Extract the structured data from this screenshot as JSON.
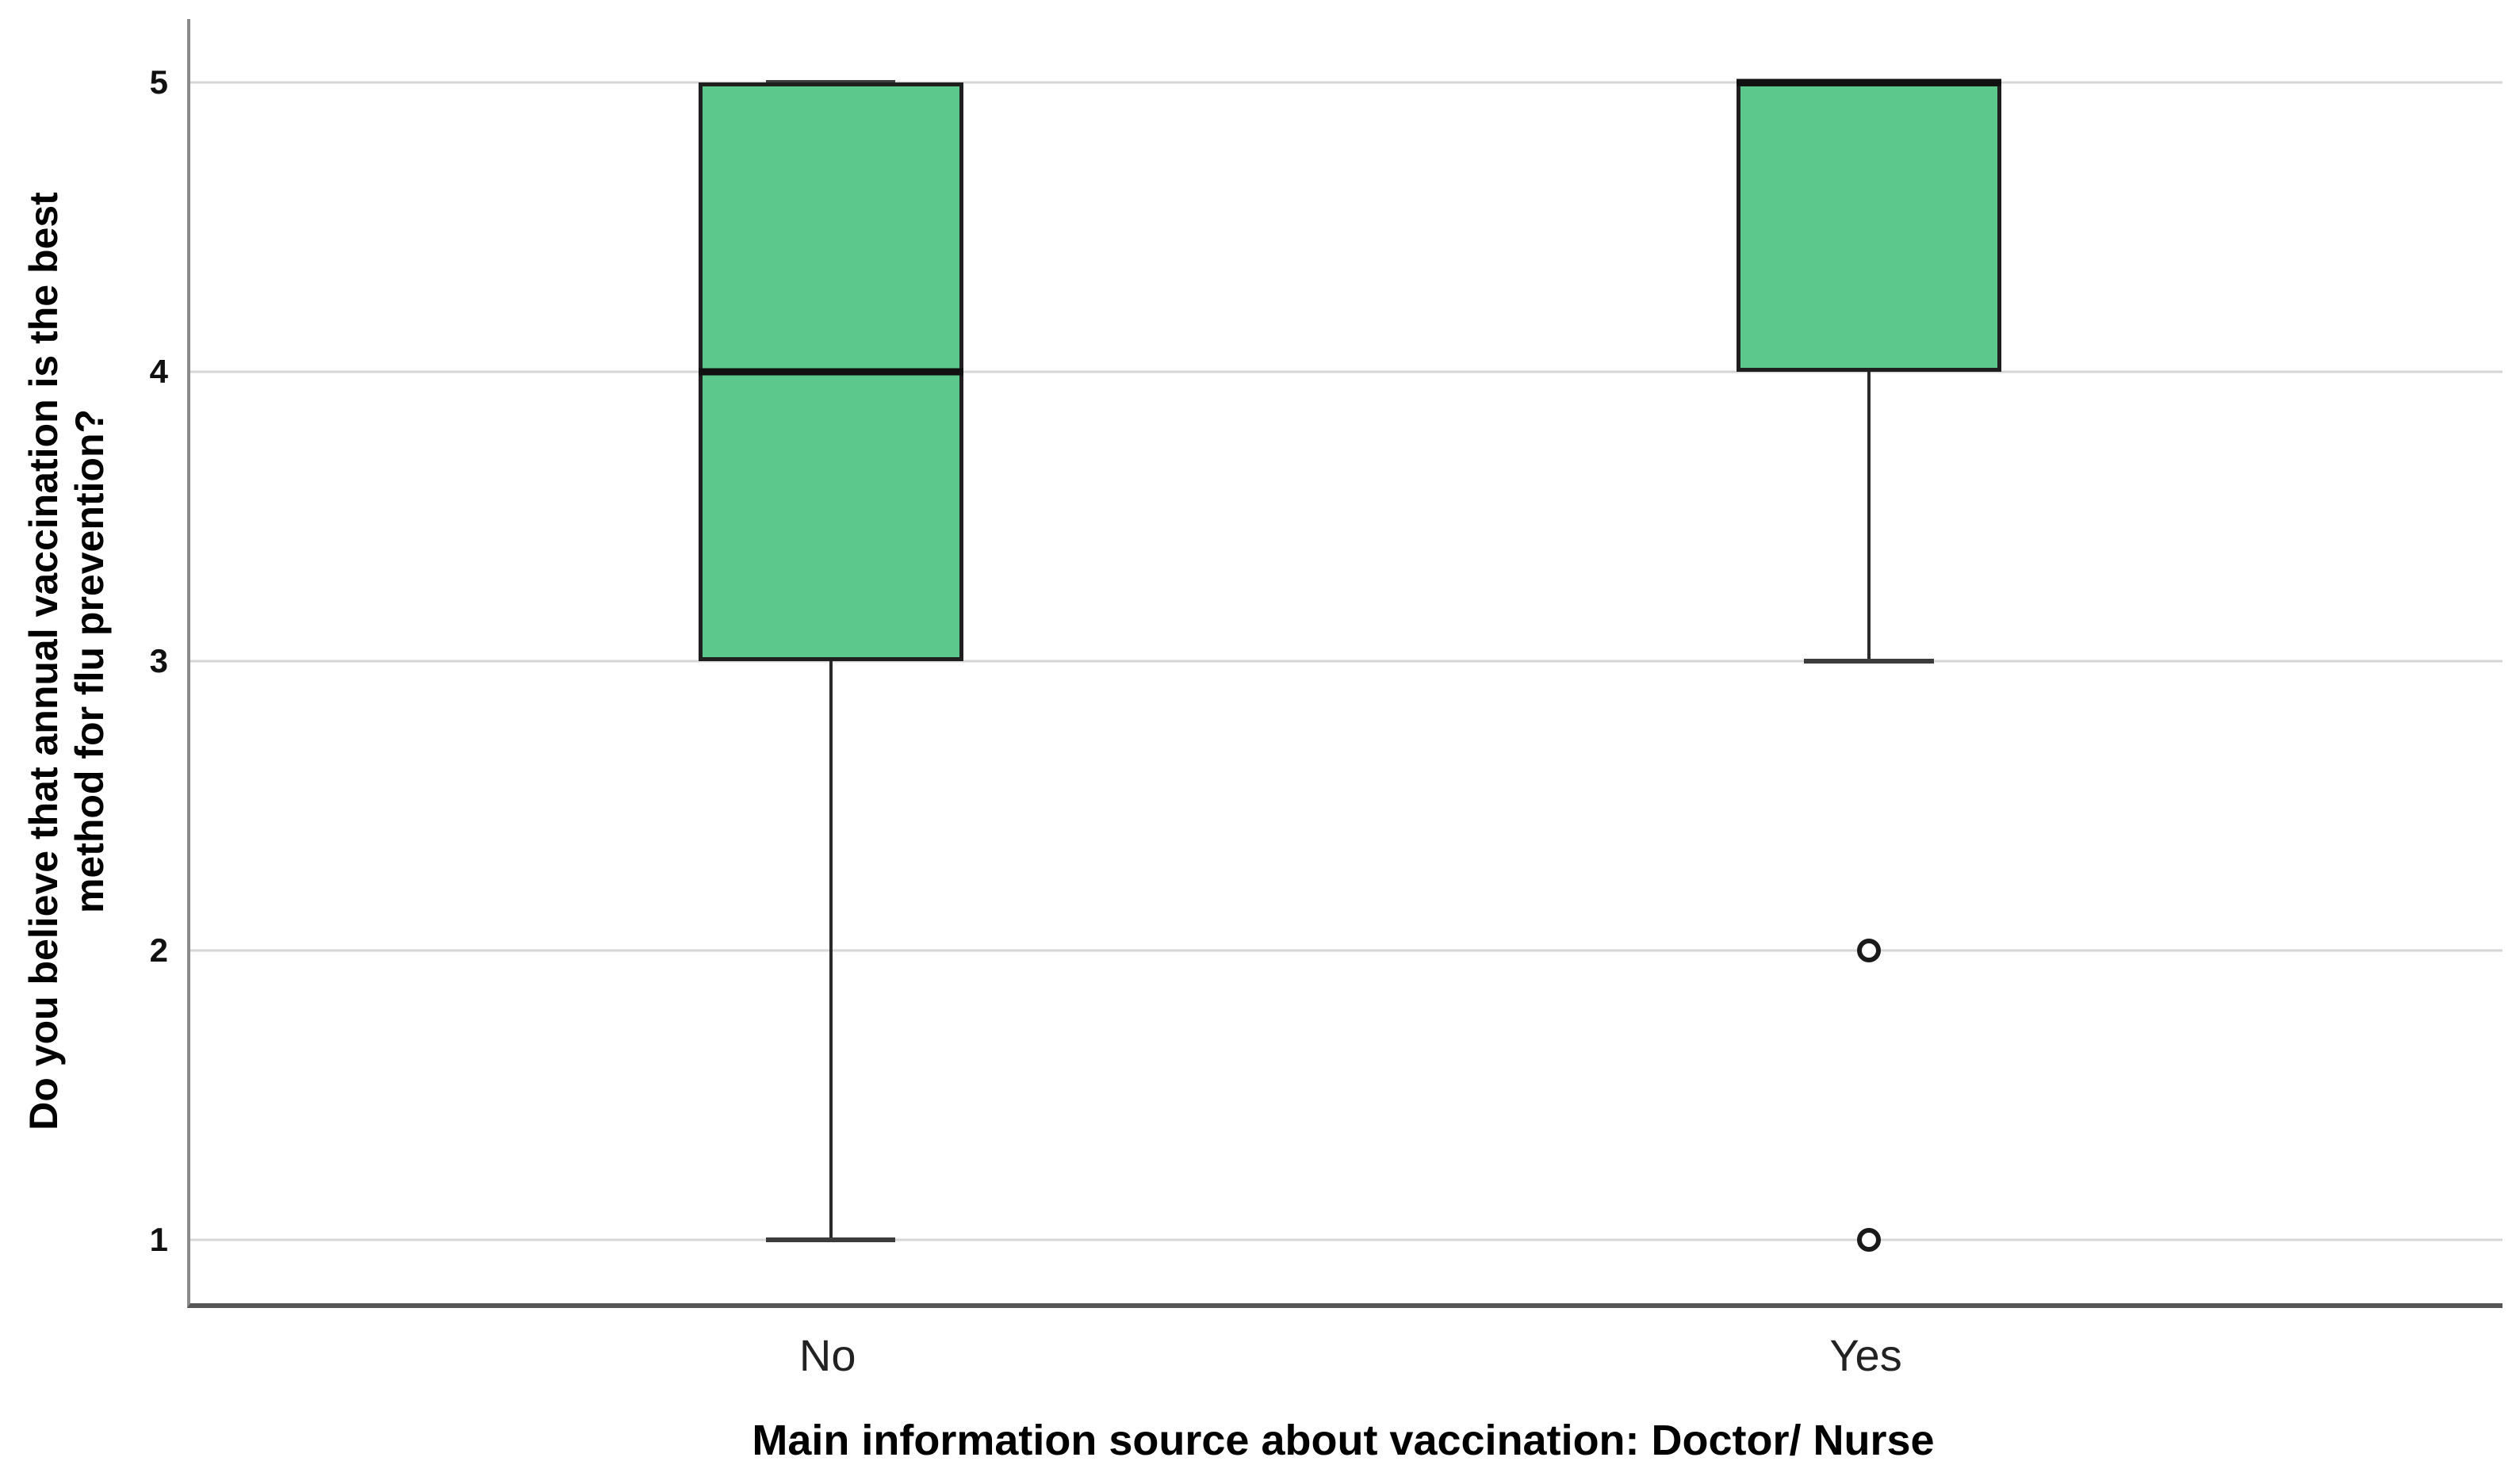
{
  "chart_data": {
    "type": "boxplot",
    "title": "",
    "xlabel": "Main information source about vaccination: Doctor/ Nurse",
    "ylabel": "Do you believe that annual vaccination is the best method for flu prevention?",
    "ylabel_lines": [
      "Do you believe that annual vaccination is the best",
      "method for flu prevention?"
    ],
    "categories": [
      "No",
      "Yes"
    ],
    "y_ticks": [
      5,
      4,
      3,
      2,
      1
    ],
    "ylim": [
      0.78,
      5.22
    ],
    "grid": "horizontal-light-gray",
    "legend": "none",
    "boxes": [
      {
        "category": "No",
        "q1": 3,
        "median": 4,
        "q3": 5,
        "whisker_low": 1,
        "whisker_high": 5,
        "outliers": [],
        "center_pct": 27.7
      },
      {
        "category": "Yes",
        "q1": 4,
        "median": 5,
        "q3": 5,
        "whisker_low": 3,
        "whisker_high": 5,
        "outliers": [
          2,
          1
        ],
        "center_pct": 72.6
      }
    ],
    "box_width_pct": 11.45,
    "cap_width_pct": 5.6,
    "colors": {
      "box_fill": "#5CC88B",
      "box_stroke": "#1F1F1F",
      "median": "#111111",
      "gridline": "#D6D6D6",
      "y_axis_line": "#8A8A8A",
      "x_axis_line": "#565656",
      "text": "#000000"
    }
  }
}
